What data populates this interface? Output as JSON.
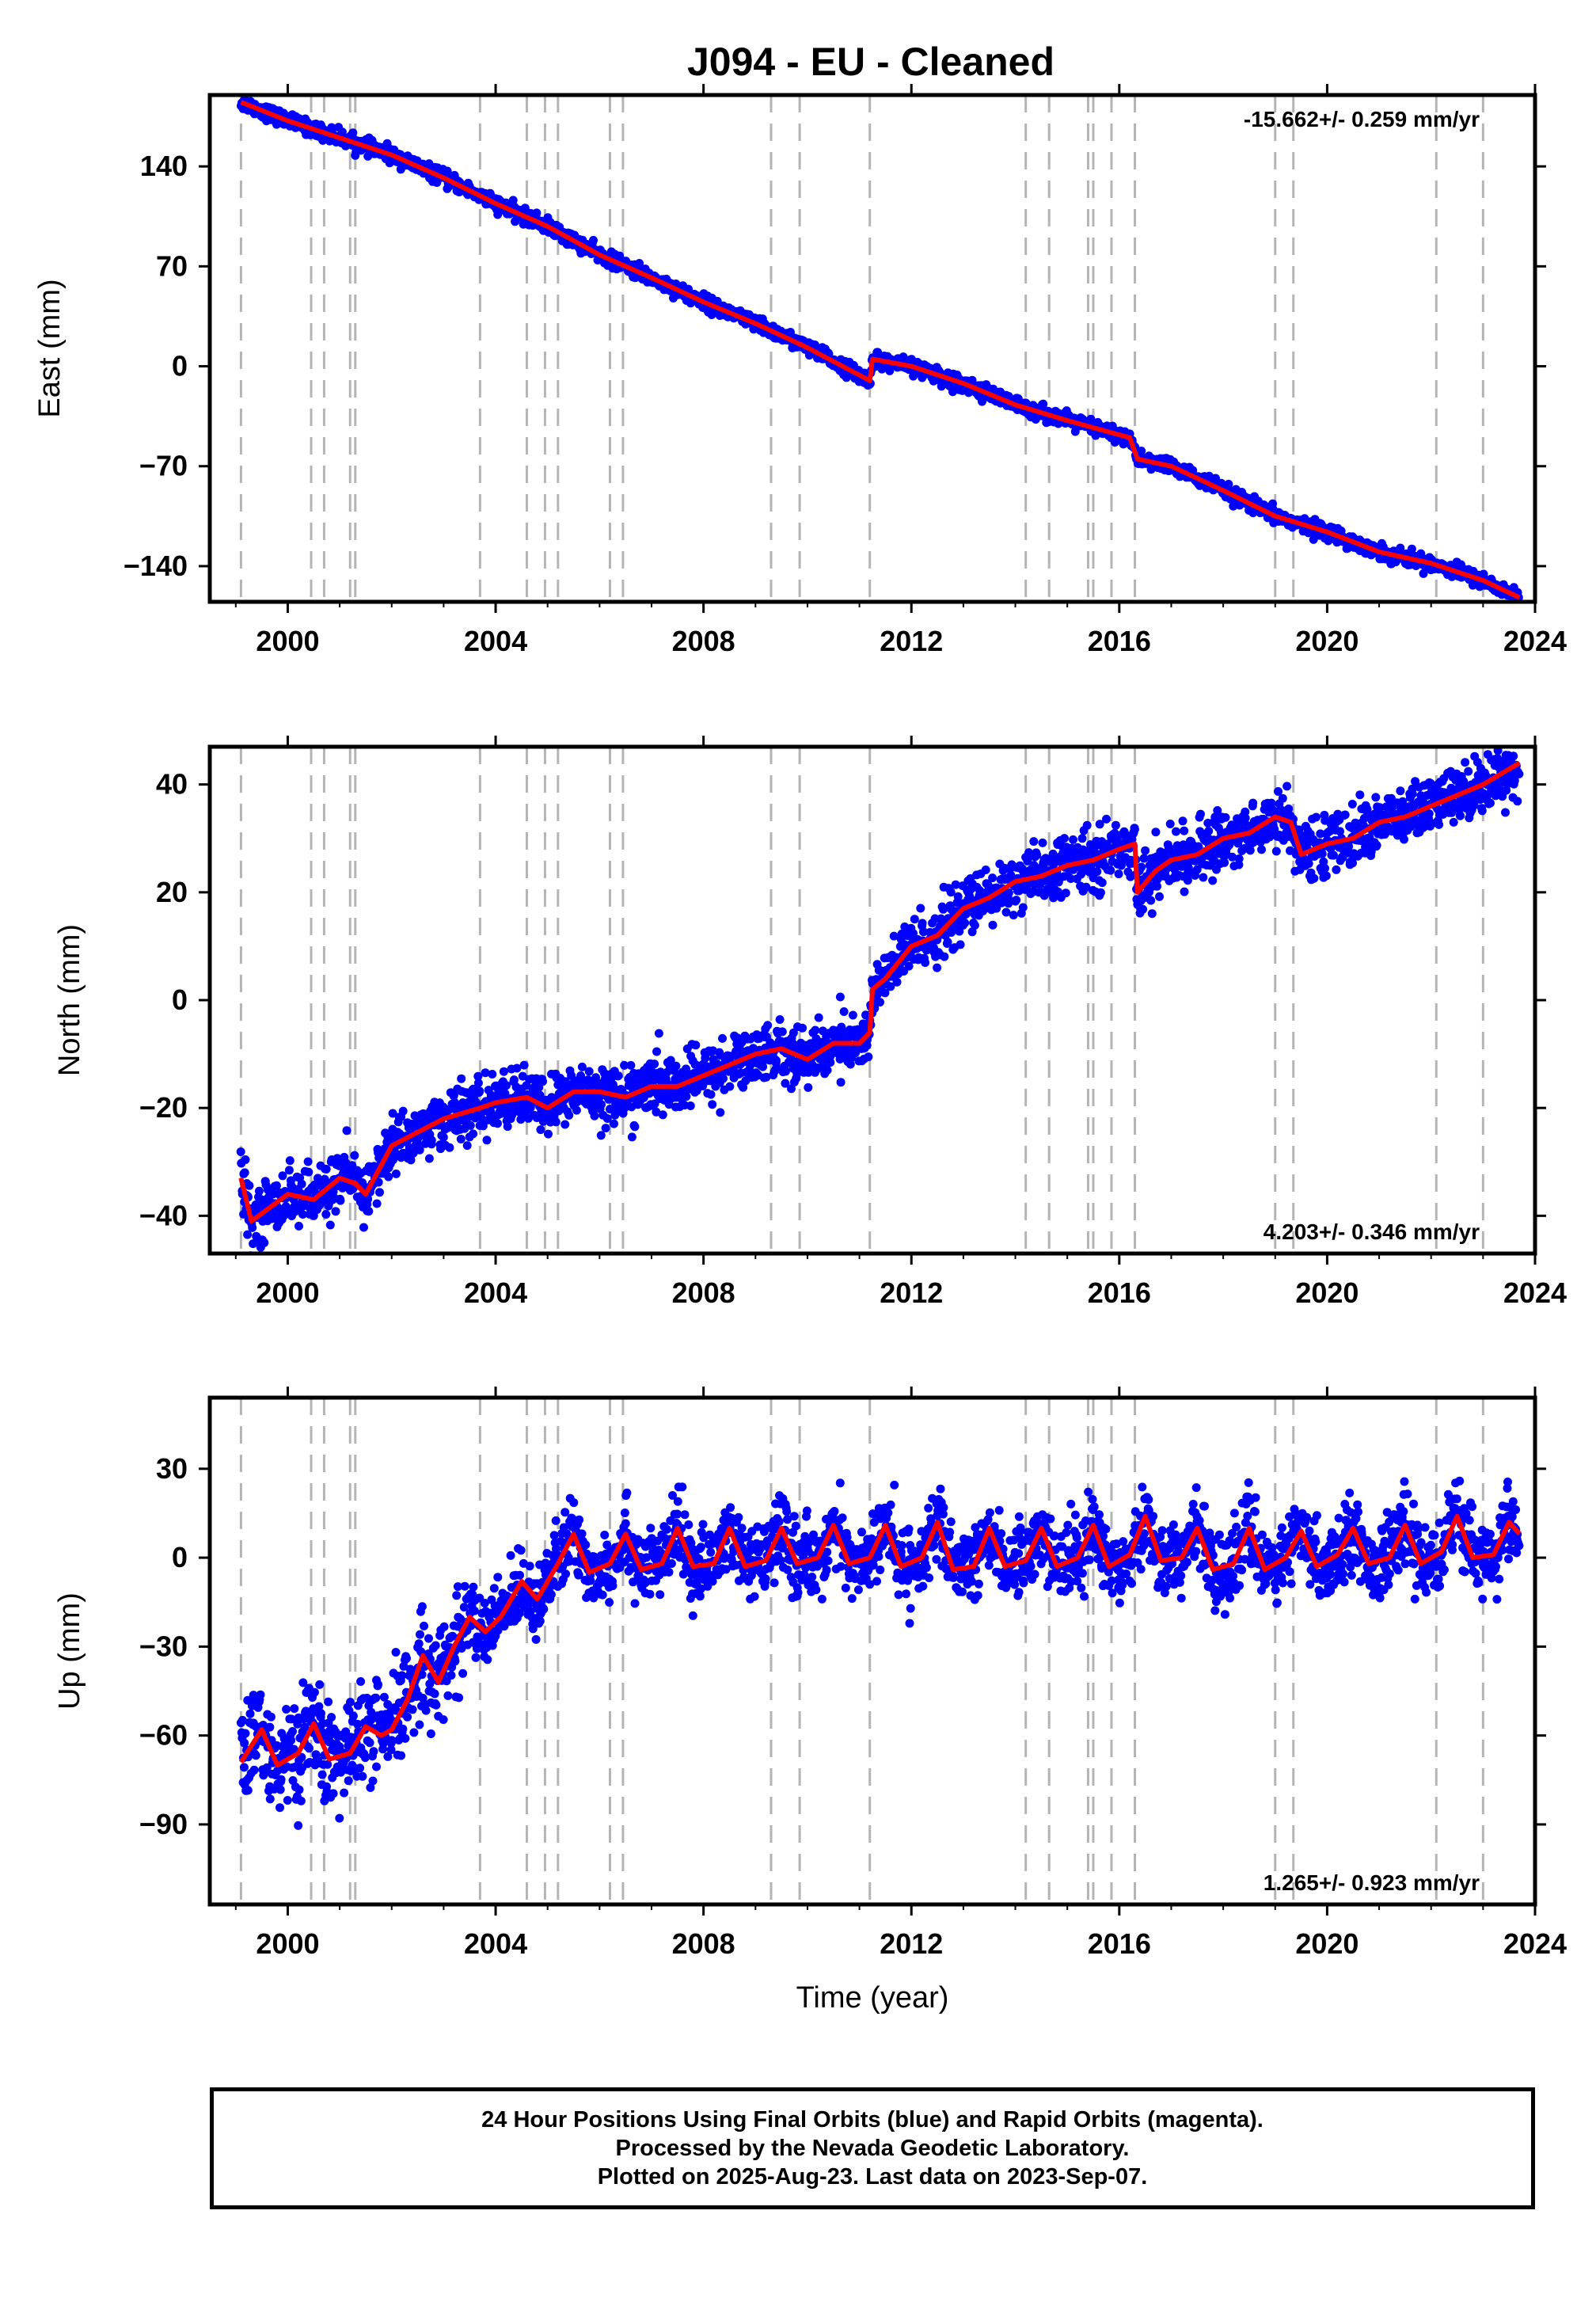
{
  "chart_data": [
    {
      "type": "scatter",
      "title": "J094  - EU - Cleaned",
      "ylabel": "East (mm)",
      "xlim": [
        1998.5,
        2024.0
      ],
      "ylim": [
        -165,
        190
      ],
      "yticks": [
        -140,
        -70,
        0,
        70,
        140
      ],
      "xticks": [
        2000,
        2004,
        2008,
        2012,
        2016,
        2020,
        2024
      ],
      "rate_label": "-15.662+/- 0.259 mm/yr",
      "rate_position": "top-right",
      "series": [
        {
          "color": "#0000ff",
          "style": "points",
          "x": [
            1999.1,
            2000.0,
            2001.0,
            2002.0,
            2003.0,
            2004.0,
            2005.0,
            2006.0,
            2007.0,
            2008.0,
            2009.0,
            2010.0,
            2011.2,
            2011.25,
            2012.0,
            2013.0,
            2014.0,
            2015.0,
            2016.2,
            2016.35,
            2017.0,
            2018.0,
            2019.0,
            2020.0,
            2021.0,
            2022.0,
            2023.0,
            2023.7
          ],
          "values": [
            185,
            172,
            160,
            148,
            132,
            114,
            98,
            78,
            62,
            45,
            30,
            13,
            -10,
            5,
            0,
            -12,
            -27,
            -38,
            -50,
            -65,
            -70,
            -87,
            -105,
            -116,
            -130,
            -138,
            -150,
            -162
          ]
        },
        {
          "color": "#ff0000",
          "style": "line",
          "x": [
            1999.1,
            2000.0,
            2001.0,
            2002.0,
            2003.0,
            2004.0,
            2005.0,
            2006.0,
            2007.0,
            2008.0,
            2009.0,
            2010.0,
            2011.2,
            2011.25,
            2012.0,
            2013.0,
            2014.0,
            2015.0,
            2016.2,
            2016.35,
            2017.0,
            2018.0,
            2019.0,
            2020.0,
            2021.0,
            2022.0,
            2023.0,
            2023.7
          ],
          "values": [
            185,
            172,
            160,
            148,
            132,
            114,
            98,
            78,
            62,
            45,
            30,
            13,
            -10,
            5,
            0,
            -12,
            -27,
            -38,
            -50,
            -65,
            -70,
            -87,
            -105,
            -116,
            -130,
            -138,
            -150,
            -162
          ]
        }
      ],
      "vlines": [
        1999.1,
        2000.45,
        2000.7,
        2001.2,
        2001.3,
        2003.7,
        2004.6,
        2004.95,
        2005.2,
        2006.2,
        2006.45,
        2009.3,
        2009.85,
        2011.2,
        2014.2,
        2014.65,
        2015.4,
        2015.5,
        2015.85,
        2016.3,
        2019.0,
        2019.35,
        2022.1,
        2023.0
      ]
    },
    {
      "type": "scatter",
      "ylabel": "North (mm)",
      "xlim": [
        1998.5,
        2024.0
      ],
      "ylim": [
        -47,
        47
      ],
      "yticks": [
        -40,
        -20,
        0,
        20,
        40
      ],
      "xticks": [
        2000,
        2004,
        2008,
        2012,
        2016,
        2020,
        2024
      ],
      "rate_label": "4.203+/- 0.346 mm/yr",
      "rate_position": "bottom-right",
      "series": [
        {
          "color": "#0000ff",
          "style": "points",
          "x": [
            1999.1,
            1999.3,
            2000.0,
            2000.5,
            2001.0,
            2001.3,
            2001.5,
            2002.0,
            2002.2,
            2003.0,
            2003.7,
            2004.0,
            2004.6,
            2005.0,
            2005.5,
            2006.0,
            2006.5,
            2007.0,
            2007.5,
            2008.0,
            2008.5,
            2009.0,
            2009.5,
            2010.0,
            2010.5,
            2011.0,
            2011.2,
            2011.25,
            2011.5,
            2012.0,
            2012.5,
            2013.0,
            2013.5,
            2014.0,
            2014.5,
            2015.0,
            2015.5,
            2016.0,
            2016.3,
            2016.35,
            2016.7,
            2017.0,
            2017.5,
            2018.0,
            2018.5,
            2019.0,
            2019.3,
            2019.5,
            2020.0,
            2020.5,
            2021.0,
            2021.5,
            2022.0,
            2022.5,
            2023.0,
            2023.7
          ],
          "values": [
            -33,
            -41,
            -36,
            -37,
            -33,
            -34,
            -36,
            -27,
            -26,
            -22,
            -20,
            -19,
            -18,
            -20,
            -17,
            -17,
            -18,
            -16,
            -16,
            -14,
            -12,
            -10,
            -9,
            -11,
            -8,
            -8,
            -6,
            2,
            4,
            10,
            12,
            17,
            19,
            22,
            23,
            25,
            26,
            28,
            29,
            20,
            24,
            26,
            27,
            30,
            31,
            34,
            33,
            27,
            29,
            30,
            33,
            34,
            36,
            38,
            40,
            44
          ]
        },
        {
          "color": "#ff0000",
          "style": "line",
          "x": [
            1999.1,
            1999.3,
            2000.0,
            2000.5,
            2001.0,
            2001.3,
            2001.5,
            2002.0,
            2002.2,
            2003.0,
            2003.7,
            2004.0,
            2004.6,
            2005.0,
            2005.5,
            2006.0,
            2006.5,
            2007.0,
            2007.5,
            2008.0,
            2008.5,
            2009.0,
            2009.5,
            2010.0,
            2010.5,
            2011.0,
            2011.2,
            2011.25,
            2011.5,
            2012.0,
            2012.5,
            2013.0,
            2013.5,
            2014.0,
            2014.5,
            2015.0,
            2015.5,
            2016.0,
            2016.3,
            2016.35,
            2016.7,
            2017.0,
            2017.5,
            2018.0,
            2018.5,
            2019.0,
            2019.3,
            2019.5,
            2020.0,
            2020.5,
            2021.0,
            2021.5,
            2022.0,
            2022.5,
            2023.0,
            2023.7
          ],
          "values": [
            -33,
            -41,
            -36,
            -37,
            -33,
            -34,
            -36,
            -27,
            -26,
            -22,
            -20,
            -19,
            -18,
            -20,
            -17,
            -17,
            -18,
            -16,
            -16,
            -14,
            -12,
            -10,
            -9,
            -11,
            -8,
            -8,
            -6,
            2,
            4,
            10,
            12,
            17,
            19,
            22,
            23,
            25,
            26,
            28,
            29,
            20,
            24,
            26,
            27,
            30,
            31,
            34,
            33,
            27,
            29,
            30,
            33,
            34,
            36,
            38,
            40,
            44
          ]
        }
      ],
      "vlines": [
        1999.1,
        2000.45,
        2000.7,
        2001.2,
        2001.3,
        2003.7,
        2004.6,
        2004.95,
        2005.2,
        2006.2,
        2006.45,
        2009.3,
        2009.85,
        2011.2,
        2014.2,
        2014.65,
        2015.4,
        2015.5,
        2015.85,
        2016.3,
        2019.0,
        2019.35,
        2022.1,
        2023.0
      ]
    },
    {
      "type": "scatter",
      "ylabel": "Up (mm)",
      "xlabel": "Time (year)",
      "xlim": [
        1998.5,
        2024.0
      ],
      "ylim": [
        -117,
        54
      ],
      "yticks": [
        -90,
        -60,
        -30,
        0,
        30
      ],
      "xticks": [
        2000,
        2004,
        2008,
        2012,
        2016,
        2020,
        2024
      ],
      "rate_label": "1.265+/- 0.923 mm/yr",
      "rate_position": "bottom-right",
      "series": [
        {
          "color": "#0000ff",
          "style": "points",
          "x": [
            1999.1,
            1999.5,
            1999.8,
            2000.2,
            2000.5,
            2000.8,
            2001.2,
            2001.5,
            2001.8,
            2002.0,
            2002.3,
            2002.6,
            2002.9,
            2003.2,
            2003.5,
            2003.8,
            2004.1,
            2004.5,
            2004.8,
            2005.2,
            2005.5,
            2005.8,
            2006.2,
            2006.5,
            2006.8,
            2007.2,
            2007.5,
            2007.8,
            2008.2,
            2008.5,
            2008.8,
            2009.2,
            2009.5,
            2009.8,
            2010.2,
            2010.5,
            2010.8,
            2011.2,
            2011.5,
            2011.8,
            2012.2,
            2012.5,
            2012.8,
            2013.2,
            2013.5,
            2013.8,
            2014.2,
            2014.5,
            2014.8,
            2015.2,
            2015.5,
            2015.8,
            2016.2,
            2016.5,
            2016.8,
            2017.2,
            2017.5,
            2017.8,
            2018.2,
            2018.5,
            2018.8,
            2019.2,
            2019.5,
            2019.8,
            2020.2,
            2020.5,
            2020.8,
            2021.2,
            2021.5,
            2021.8,
            2022.2,
            2022.5,
            2022.8,
            2023.2,
            2023.5,
            2023.7
          ],
          "values": [
            -69,
            -58,
            -70,
            -66,
            -56,
            -68,
            -66,
            -57,
            -60,
            -58,
            -48,
            -33,
            -42,
            -30,
            -20,
            -25,
            -20,
            -8,
            -14,
            -2,
            8,
            -5,
            -2,
            8,
            -4,
            -2,
            10,
            -3,
            -2,
            10,
            -3,
            -1,
            10,
            -2,
            0,
            11,
            -2,
            0,
            11,
            -3,
            0,
            12,
            -4,
            -3,
            10,
            -3,
            -1,
            10,
            -3,
            0,
            11,
            -3,
            1,
            14,
            -1,
            0,
            10,
            -4,
            -2,
            10,
            -4,
            0,
            9,
            -3,
            1,
            10,
            -2,
            0,
            11,
            -2,
            2,
            14,
            0,
            1,
            12,
            8
          ]
        },
        {
          "color": "#ff0000",
          "style": "line",
          "x": [
            1999.1,
            1999.5,
            1999.8,
            2000.2,
            2000.5,
            2000.8,
            2001.2,
            2001.5,
            2001.8,
            2002.0,
            2002.3,
            2002.6,
            2002.9,
            2003.2,
            2003.5,
            2003.8,
            2004.1,
            2004.5,
            2004.8,
            2005.2,
            2005.5,
            2005.8,
            2006.2,
            2006.5,
            2006.8,
            2007.2,
            2007.5,
            2007.8,
            2008.2,
            2008.5,
            2008.8,
            2009.2,
            2009.5,
            2009.8,
            2010.2,
            2010.5,
            2010.8,
            2011.2,
            2011.5,
            2011.8,
            2012.2,
            2012.5,
            2012.8,
            2013.2,
            2013.5,
            2013.8,
            2014.2,
            2014.5,
            2014.8,
            2015.2,
            2015.5,
            2015.8,
            2016.2,
            2016.5,
            2016.8,
            2017.2,
            2017.5,
            2017.8,
            2018.2,
            2018.5,
            2018.8,
            2019.2,
            2019.5,
            2019.8,
            2020.2,
            2020.5,
            2020.8,
            2021.2,
            2021.5,
            2021.8,
            2022.2,
            2022.5,
            2022.8,
            2023.2,
            2023.5,
            2023.7
          ],
          "values": [
            -69,
            -58,
            -70,
            -66,
            -56,
            -68,
            -66,
            -57,
            -60,
            -58,
            -48,
            -33,
            -42,
            -30,
            -20,
            -25,
            -20,
            -8,
            -14,
            -2,
            8,
            -5,
            -2,
            8,
            -4,
            -2,
            10,
            -3,
            -2,
            10,
            -3,
            -1,
            10,
            -2,
            0,
            11,
            -2,
            0,
            11,
            -3,
            0,
            12,
            -4,
            -3,
            10,
            -3,
            -1,
            10,
            -3,
            0,
            11,
            -3,
            1,
            14,
            -1,
            0,
            10,
            -4,
            -2,
            10,
            -4,
            0,
            9,
            -3,
            1,
            10,
            -2,
            0,
            11,
            -2,
            2,
            14,
            0,
            1,
            12,
            8
          ]
        }
      ],
      "vlines": [
        1999.1,
        2000.45,
        2000.7,
        2001.2,
        2001.3,
        2003.7,
        2004.6,
        2004.95,
        2005.2,
        2006.2,
        2006.45,
        2009.3,
        2009.85,
        2011.2,
        2014.2,
        2014.65,
        2015.4,
        2015.5,
        2015.85,
        2016.3,
        2019.0,
        2019.35,
        2022.1,
        2023.0
      ]
    }
  ],
  "footer": {
    "line1": "24 Hour Positions Using Final Orbits (blue) and Rapid Orbits (magenta).",
    "line2": "Processed by the Nevada Geodetic Laboratory.",
    "line3": "Plotted on 2025-Aug-23. Last data on 2023-Sep-07."
  }
}
